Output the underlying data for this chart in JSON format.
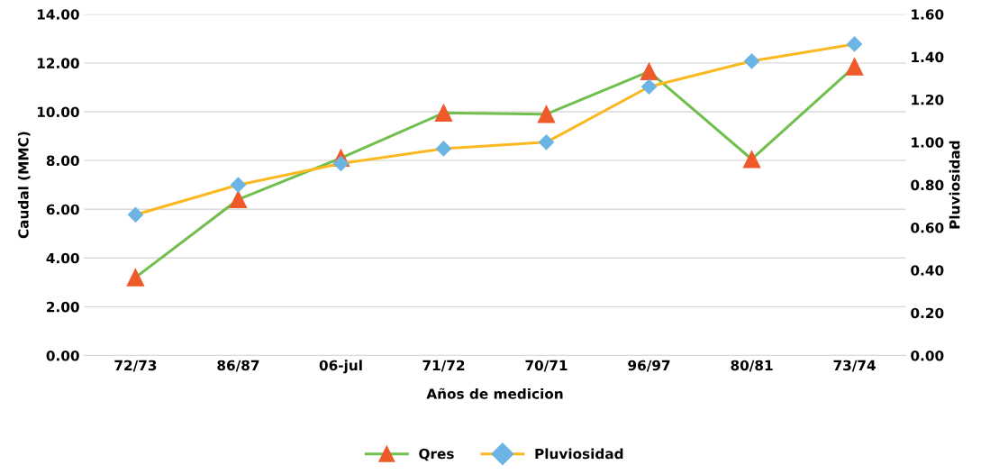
{
  "chart_data": {
    "type": "line",
    "xlabel": "Años de medicion",
    "ylabel": "Caudal (MMC)",
    "y2label": "Pluviosidad",
    "categories": [
      "72/73",
      "86/87",
      "06-jul",
      "71/72",
      "70/71",
      "96/97",
      "80/81",
      "73/74"
    ],
    "series": [
      {
        "name": "Qres",
        "color": "#70bf4f",
        "colors": [
          "#ee5a2a",
          "#ee5a2a",
          "#ee5a2a",
          "#ee5a2a",
          "#ee5a2a",
          "#ee5a2a",
          "#ee5a2a",
          "#ee5a2a"
        ],
        "marker": "triangle",
        "values": [
          3.2,
          6.4,
          8.1,
          9.95,
          9.9,
          11.65,
          8.05,
          11.85
        ]
      },
      {
        "name": "Pluviosidad",
        "color": "#fbb820",
        "colors": [
          "#6cb4e4",
          "#6cb4e4",
          "#6cb4e4",
          "#6cb4e4",
          "#6cb4e4",
          "#6cb4e4",
          "#6cb4e4",
          "#6cb4e4"
        ],
        "marker": "diamond",
        "axis": "y2",
        "values": [
          0.66,
          0.8,
          0.9,
          0.97,
          1.0,
          1.26,
          1.38,
          1.46
        ]
      }
    ],
    "ylim": [
      0,
      14
    ],
    "yticks": [
      {
        "value": 0,
        "label": "0.00"
      },
      {
        "value": 2,
        "label": "2.00"
      },
      {
        "value": 4,
        "label": "4.00"
      },
      {
        "value": 6,
        "label": "6.00"
      },
      {
        "value": 8,
        "label": "8.00"
      },
      {
        "value": 10,
        "label": "10.00"
      },
      {
        "value": 12,
        "label": "12.00"
      },
      {
        "value": 14,
        "label": "14.00"
      }
    ],
    "y2lim": [
      0,
      1.6
    ],
    "y2ticks": [
      {
        "value": 0,
        "label": "0.00"
      },
      {
        "value": 0.2,
        "label": "0.20"
      },
      {
        "value": 0.4,
        "label": "0.40"
      },
      {
        "value": 0.6,
        "label": "0.60"
      },
      {
        "value": 0.8,
        "label": "0.80"
      },
      {
        "value": 1.0,
        "label": "1.00"
      },
      {
        "value": 1.2,
        "label": "1.20"
      },
      {
        "value": 1.4,
        "label": "1.40"
      },
      {
        "value": 1.6,
        "label": "1.60"
      }
    ],
    "grid": "y",
    "legend": "bottom"
  }
}
